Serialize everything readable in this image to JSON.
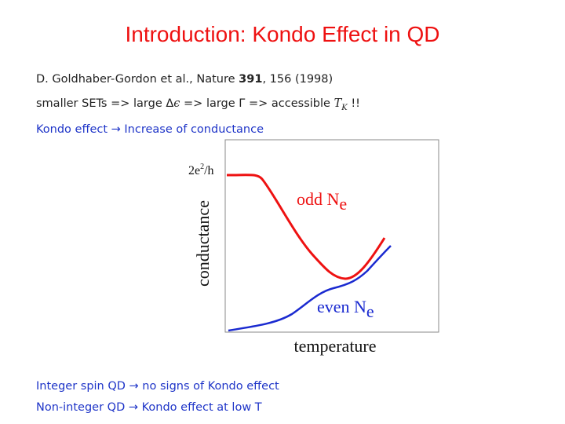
{
  "title": "Introduction: Kondo Effect in QD",
  "reference": {
    "authors": "D. Goldhaber-Gordon et al., Nature ",
    "volume": "391",
    "rest": ", 156 (1998)"
  },
  "line2": {
    "p1": "smaller SETs => large ",
    "delta": "Δ",
    "eps": "ϵ",
    "p2": " => large ",
    "gamma": "Γ",
    "p3": " => accessible ",
    "T": "T",
    "K": "K",
    "p4": " !!"
  },
  "line3": {
    "p1": "Kondo effect ",
    "arrow": "→",
    "p2": " Increase of conductance"
  },
  "plot": {
    "ymax_label": "2e",
    "ymax_sup": "2",
    "ymax_tail": "/h",
    "ylabel": "conductance",
    "xlabel": "temperature",
    "odd_label": "odd N",
    "odd_sub": "e",
    "even_label": "even N",
    "even_sub": "e",
    "odd_color": "#ee1111",
    "even_color": "#1a2ad0"
  },
  "bottom": {
    "line1": {
      "p1": "Integer spin QD ",
      "arrow": "→",
      "p2": " no signs of Kondo effect"
    },
    "line2": {
      "p1": "Non-integer QD ",
      "arrow": "→",
      "p2": " Kondo effect at low T"
    }
  }
}
